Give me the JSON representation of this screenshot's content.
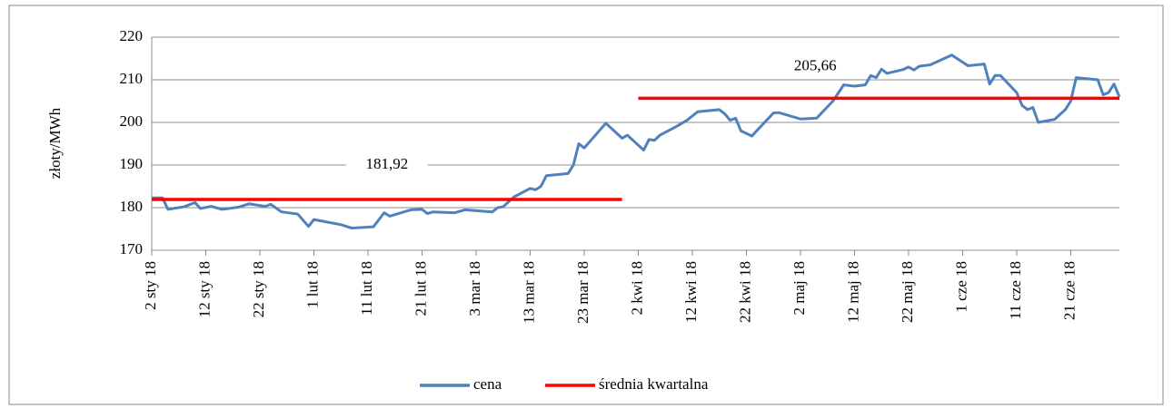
{
  "chart_data": {
    "type": "line",
    "ylabel": "złoty/MWh",
    "xlim": [
      "2018-01-02",
      "2018-06-30"
    ],
    "xticks": [
      {
        "value": "2018-01-02",
        "label": "2 sty 18"
      },
      {
        "value": "2018-01-12",
        "label": "12 sty 18"
      },
      {
        "value": "2018-01-22",
        "label": "22 sty 18"
      },
      {
        "value": "2018-02-01",
        "label": "1 lut 18"
      },
      {
        "value": "2018-02-11",
        "label": "11 lut 18"
      },
      {
        "value": "2018-02-21",
        "label": "21 lut 18"
      },
      {
        "value": "2018-03-03",
        "label": "3 mar 18"
      },
      {
        "value": "2018-03-13",
        "label": "13 mar 18"
      },
      {
        "value": "2018-03-23",
        "label": "23 mar 18"
      },
      {
        "value": "2018-04-02",
        "label": "2 kwi 18"
      },
      {
        "value": "2018-04-12",
        "label": "12 kwi 18"
      },
      {
        "value": "2018-04-22",
        "label": "22 kwi 18"
      },
      {
        "value": "2018-05-02",
        "label": "2 maj 18"
      },
      {
        "value": "2018-05-12",
        "label": "12 maj 18"
      },
      {
        "value": "2018-05-22",
        "label": "22 maj 18"
      },
      {
        "value": "2018-06-01",
        "label": "1 cze 18"
      },
      {
        "value": "2018-06-11",
        "label": "11 cze 18"
      },
      {
        "value": "2018-06-21",
        "label": "21 cze 18"
      }
    ],
    "ylim": [
      170,
      220
    ],
    "yticks": [
      170,
      180,
      190,
      200,
      210,
      220
    ],
    "grid": true,
    "legend": "bottom",
    "series": [
      {
        "name": "cena",
        "color": "#4f81bd",
        "x": [
          "2018-01-02",
          "2018-01-04",
          "2018-01-05",
          "2018-01-08",
          "2018-01-10",
          "2018-01-11",
          "2018-01-13",
          "2018-01-15",
          "2018-01-18",
          "2018-01-20",
          "2018-01-23",
          "2018-01-24",
          "2018-01-26",
          "2018-01-29",
          "2018-01-31",
          "2018-02-01",
          "2018-02-06",
          "2018-02-08",
          "2018-02-12",
          "2018-02-14",
          "2018-02-15",
          "2018-02-19",
          "2018-02-21",
          "2018-02-22",
          "2018-02-23",
          "2018-02-27",
          "2018-03-01",
          "2018-03-06",
          "2018-03-07",
          "2018-03-08",
          "2018-03-10",
          "2018-03-13",
          "2018-03-14",
          "2018-03-15",
          "2018-03-16",
          "2018-03-20",
          "2018-03-21",
          "2018-03-22",
          "2018-03-23",
          "2018-03-27",
          "2018-03-30",
          "2018-03-31",
          "2018-04-03",
          "2018-04-04",
          "2018-04-05",
          "2018-04-06",
          "2018-04-09",
          "2018-04-11",
          "2018-04-13",
          "2018-04-17",
          "2018-04-18",
          "2018-04-19",
          "2018-04-20",
          "2018-04-21",
          "2018-04-23",
          "2018-04-25",
          "2018-04-27",
          "2018-04-28",
          "2018-05-02",
          "2018-05-05",
          "2018-05-08",
          "2018-05-10",
          "2018-05-12",
          "2018-05-14",
          "2018-05-15",
          "2018-05-16",
          "2018-05-17",
          "2018-05-18",
          "2018-05-21",
          "2018-05-22",
          "2018-05-23",
          "2018-05-24",
          "2018-05-26",
          "2018-05-30",
          "2018-06-02",
          "2018-06-05",
          "2018-06-06",
          "2018-06-07",
          "2018-06-08",
          "2018-06-11",
          "2018-06-12",
          "2018-06-13",
          "2018-06-14",
          "2018-06-15",
          "2018-06-18",
          "2018-06-20",
          "2018-06-21",
          "2018-06-22",
          "2018-06-26",
          "2018-06-27",
          "2018-06-28",
          "2018-06-29",
          "2018-06-30"
        ],
        "values": [
          182.3,
          182.3,
          179.6,
          180.2,
          181.2,
          179.8,
          180.3,
          179.6,
          180.1,
          180.9,
          180.3,
          180.8,
          179.0,
          178.5,
          175.6,
          177.2,
          176.0,
          175.2,
          175.5,
          178.8,
          178.0,
          179.5,
          179.6,
          178.6,
          179.0,
          178.8,
          179.5,
          179.0,
          180.0,
          180.2,
          182.5,
          184.5,
          184.2,
          185.0,
          187.5,
          188.0,
          190.0,
          195.0,
          194.0,
          199.8,
          196.3,
          197.0,
          193.5,
          196.0,
          195.8,
          197.0,
          199.0,
          200.5,
          202.5,
          203.0,
          202.0,
          200.5,
          201.0,
          198.0,
          196.8,
          199.5,
          202.2,
          202.3,
          200.8,
          201.0,
          205.0,
          208.8,
          208.5,
          208.8,
          211.0,
          210.5,
          212.5,
          211.5,
          212.4,
          213.0,
          212.3,
          213.2,
          213.5,
          215.8,
          213.3,
          213.7,
          209.0,
          211.0,
          211.0,
          207.0,
          204.0,
          203.0,
          203.5,
          200.0,
          200.7,
          203.0,
          205.0,
          210.5,
          210.0,
          206.5,
          207.0,
          209.0,
          206.0
        ]
      },
      {
        "name": "średnia kwartalna",
        "color": "#ff0000",
        "x": [
          "2018-01-02",
          "2018-03-30",
          "2018-03-31",
          "2018-04-02",
          "2018-06-30"
        ],
        "values": [
          181.92,
          181.92,
          null,
          205.66,
          205.66
        ]
      }
    ],
    "annotations": [
      {
        "label": "181,92",
        "value": 181.92
      },
      {
        "label": "205,66",
        "value": 205.66
      }
    ]
  }
}
